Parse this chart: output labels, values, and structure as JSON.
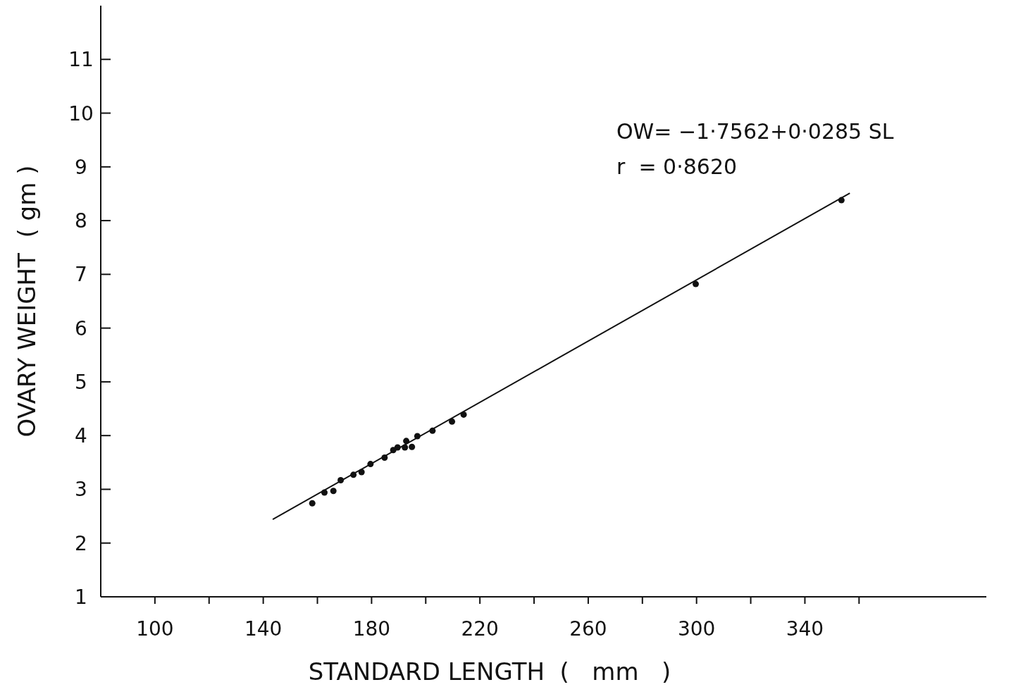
{
  "chart_data": {
    "type": "scatter",
    "xlabel": "STANDARD LENGTH  (   mm   )",
    "ylabel": "OVARY WEIGHT  ( gm )",
    "annotations": [
      "OW= −1·7562+0·0285 SL",
      "r  = 0·8620"
    ],
    "xlim": [
      80,
      407
    ],
    "ylim": [
      1,
      12
    ],
    "xticks": [
      100,
      {
        "value": 120,
        "label": null
      },
      140,
      {
        "value": 160,
        "label": null
      },
      180,
      {
        "value": 200,
        "label": null
      },
      220,
      {
        "value": 240,
        "label": null
      },
      260,
      {
        "value": 280,
        "label": null
      },
      300,
      {
        "value": 320,
        "label": null
      },
      340,
      {
        "value": 360,
        "label": null
      }
    ],
    "yticks": [
      1,
      2,
      3,
      4,
      5,
      6,
      7,
      8,
      9,
      10,
      11
    ],
    "grid": false,
    "marker": "circle",
    "series": [
      {
        "color": "#111111",
        "x": [
          158.1,
          162.6,
          165.9,
          168.6,
          173.3,
          176.3,
          179.6,
          184.8,
          188,
          189.6,
          192.3,
          192.8,
          194.9,
          196.9,
          202.5,
          209.7,
          214,
          299.7,
          353.5
        ],
        "values": [
          2.74,
          2.94,
          2.97,
          3.17,
          3.27,
          3.32,
          3.47,
          3.59,
          3.73,
          3.78,
          3.78,
          3.9,
          3.79,
          3.99,
          4.09,
          4.26,
          4.39,
          6.82,
          8.38
        ]
      },
      {
        "type": "line",
        "color": "#111111",
        "x": [
          143.5,
          356.6
        ],
        "values": [
          2.44,
          8.51
        ],
        "marker": "none",
        "line_style": "solid"
      }
    ]
  }
}
